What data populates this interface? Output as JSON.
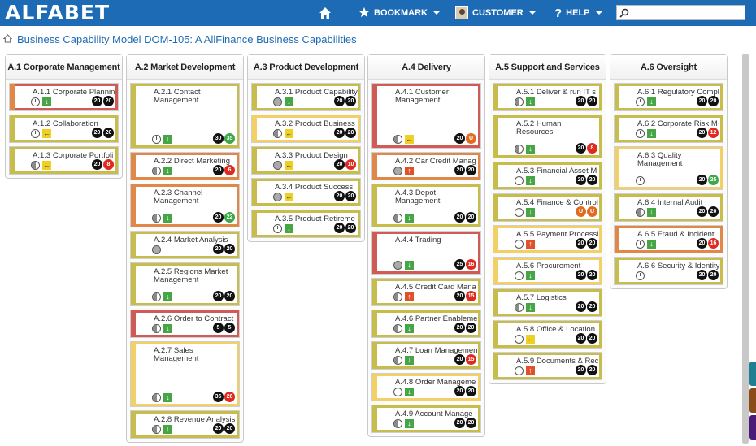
{
  "app": {
    "logo": "ALFABET"
  },
  "nav": {
    "bookmark": "BOOKMARK",
    "customer": "CUSTOMER",
    "help": "HELP",
    "search_value": ""
  },
  "page": {
    "title": "Business Capability Model DOM-105: A AllFinance Business Capabilities"
  },
  "colors": {
    "topbar": "#1e6bb5",
    "bar_red": "#d05a55",
    "bar_orange": "#e0874a",
    "bar_olive": "#c6bd4c",
    "bar_yellow": "#f2d066",
    "arrow_down": "#46a646",
    "arrow_up": "#e0512a",
    "arrow_left": "#f0cf24"
  },
  "columns": [
    {
      "title": "A.1 Corporate Management",
      "cards": [
        {
          "label": "A.1.1  Corporate Plannin",
          "h": 1,
          "bar": "orange",
          "frame": "red",
          "status": "clock",
          "arrow": "down",
          "badges": [
            [
              "20",
              "black"
            ],
            [
              "20",
              "black"
            ]
          ]
        },
        {
          "label": "A.1.2  Collaboration",
          "h": 1,
          "bar": "olive",
          "frame": "olive",
          "status": "clock",
          "arrow": "left",
          "badges": [
            [
              "20",
              "black"
            ],
            [
              "20",
              "black"
            ]
          ]
        },
        {
          "label": "A.1.3  Corporate Portfoli",
          "h": 1,
          "bar": "olive",
          "frame": "olive",
          "status": "half",
          "arrow": "left",
          "badges": [
            [
              "20",
              "black"
            ],
            [
              "8",
              "red"
            ]
          ]
        }
      ]
    },
    {
      "title": "A.2 Market Development",
      "cards": [
        {
          "label": "A.2.1 Contact Management",
          "h": 3,
          "bar": "olive",
          "frame": "olive",
          "status": "clock",
          "arrow": "down",
          "badges": [
            [
              "30",
              "black"
            ],
            [
              "35",
              "green"
            ]
          ]
        },
        {
          "label": "A.2.2 Direct Marketing",
          "h": 1,
          "bar": "orange",
          "frame": "orange",
          "status": "half",
          "arrow": "down",
          "badges": [
            [
              "20",
              "black"
            ],
            [
              "6",
              "red"
            ]
          ]
        },
        {
          "label": "A.2.3 Channel Management",
          "h": 2,
          "bar": "orange",
          "frame": "orange",
          "status": "half",
          "arrow": "down",
          "badges": [
            [
              "20",
              "black"
            ],
            [
              "22",
              "green"
            ]
          ]
        },
        {
          "label": "A.2.4 Market Analysis",
          "h": 1,
          "bar": "olive",
          "frame": "olive",
          "status": "full",
          "arrow": "",
          "badges": [
            [
              "20",
              "black"
            ],
            [
              "20",
              "black"
            ]
          ]
        },
        {
          "label": "A.2.5 Regions Market Management",
          "h": 2,
          "bar": "olive",
          "frame": "olive",
          "status": "half",
          "arrow": "down",
          "badges": [
            [
              "20",
              "black"
            ],
            [
              "20",
              "black"
            ]
          ]
        },
        {
          "label": "A.2.6 Order to Contract",
          "h": 1,
          "bar": "red",
          "frame": "red",
          "status": "half",
          "arrow": "down",
          "badges": [
            [
              "5",
              "black"
            ],
            [
              "5",
              "black"
            ]
          ]
        },
        {
          "label": "A.2.7 Sales Management",
          "h": 3,
          "bar": "yellow",
          "frame": "yellow",
          "status": "half",
          "arrow": "down",
          "badges": [
            [
              "35",
              "black"
            ],
            [
              "26",
              "red"
            ]
          ]
        },
        {
          "label": "A.2.8 Revenue Analysis",
          "h": 1,
          "bar": "olive",
          "frame": "olive",
          "status": "half",
          "arrow": "down",
          "badges": [
            [
              "20",
              "black"
            ],
            [
              "20",
              "black"
            ]
          ]
        }
      ]
    },
    {
      "title": "A.3 Product Development",
      "cards": [
        {
          "label": "A.3.1 Product Capability",
          "h": 1,
          "bar": "olive",
          "frame": "olive",
          "status": "full",
          "arrow": "down",
          "badges": [
            [
              "20",
              "black"
            ],
            [
              "20",
              "black"
            ]
          ]
        },
        {
          "label": "A.3.2 Product Business",
          "h": 1,
          "bar": "yellow",
          "frame": "yellow",
          "status": "half",
          "arrow": "left",
          "badges": [
            [
              "20",
              "black"
            ],
            [
              "20",
              "black"
            ]
          ]
        },
        {
          "label": "A.3.3 Product Design",
          "h": 1,
          "bar": "olive",
          "frame": "olive",
          "status": "full",
          "arrow": "left",
          "badges": [
            [
              "20",
              "black"
            ],
            [
              "10",
              "red"
            ]
          ]
        },
        {
          "label": "A.3.4 Product Success",
          "h": 1,
          "bar": "olive",
          "frame": "olive",
          "status": "full",
          "arrow": "left",
          "badges": [
            [
              "20",
              "black"
            ],
            [
              "20",
              "black"
            ]
          ]
        },
        {
          "label": "A.3.5  Product Retireme",
          "h": 1,
          "bar": "olive",
          "frame": "olive",
          "status": "clock",
          "arrow": "down",
          "badges": [
            [
              "20",
              "black"
            ],
            [
              "20",
              "black"
            ]
          ]
        }
      ]
    },
    {
      "title": "A.4 Delivery",
      "cards": [
        {
          "label": "A.4.1 Customer Management",
          "h": 3,
          "bar": "red",
          "frame": "red",
          "status": "half",
          "arrow": "left",
          "badges": [
            [
              "20",
              "black"
            ],
            [
              "U",
              "orange"
            ]
          ]
        },
        {
          "label": "A.4.2 Car Credit Manag",
          "h": 1,
          "bar": "orange",
          "frame": "orange",
          "status": "full",
          "arrow": "up",
          "badges": [
            [
              "20",
              "black"
            ],
            [
              "20",
              "black"
            ]
          ]
        },
        {
          "label": "A.4.3 Depot Management",
          "h": 2,
          "bar": "olive",
          "frame": "olive",
          "status": "half",
          "arrow": "down",
          "badges": [
            [
              "20",
              "black"
            ],
            [
              "20",
              "black"
            ]
          ]
        },
        {
          "label": "A.4.4 Trading",
          "h": 2,
          "bar": "red",
          "frame": "red",
          "status": "full",
          "arrow": "down",
          "badges": [
            [
              "25",
              "black"
            ],
            [
              "16",
              "red"
            ]
          ]
        },
        {
          "label": "A.4.5 Credit Card Mana",
          "h": 1,
          "bar": "olive",
          "frame": "olive",
          "status": "half",
          "arrow": "up",
          "badges": [
            [
              "20",
              "black"
            ],
            [
              "15",
              "red"
            ]
          ]
        },
        {
          "label": "A.4.6  Partner Enableme",
          "h": 1,
          "bar": "olive",
          "frame": "olive",
          "status": "half",
          "arrow": "down",
          "badges": [
            [
              "20",
              "black"
            ],
            [
              "20",
              "black"
            ]
          ]
        },
        {
          "label": "A.4.7  Loan Managemen",
          "h": 1,
          "bar": "olive",
          "frame": "olive",
          "status": "half",
          "arrow": "down",
          "badges": [
            [
              "20",
              "black"
            ],
            [
              "15",
              "red"
            ]
          ]
        },
        {
          "label": "A.4.8 Order Manageme",
          "h": 1,
          "bar": "yellow",
          "frame": "yellow",
          "status": "clock",
          "arrow": "down",
          "badges": [
            [
              "20",
              "black"
            ],
            [
              "20",
              "black"
            ]
          ]
        },
        {
          "label": "A.4.9  Account Manage",
          "h": 1,
          "bar": "olive",
          "frame": "olive",
          "status": "half",
          "arrow": "down",
          "badges": [
            [
              "20",
              "black"
            ],
            [
              "20",
              "black"
            ]
          ]
        }
      ]
    },
    {
      "title": "A.5 Support and Services",
      "cards": [
        {
          "label": "A.5.1 Deliver & run IT s",
          "h": 1,
          "bar": "olive",
          "frame": "olive",
          "status": "half",
          "arrow": "down",
          "badges": [
            [
              "20",
              "black"
            ],
            [
              "20",
              "black"
            ]
          ]
        },
        {
          "label": "A.5.2 Human Resources",
          "h": 2,
          "bar": "olive",
          "frame": "olive",
          "status": "half",
          "arrow": "down",
          "badges": [
            [
              "20",
              "black"
            ],
            [
              "8",
              "red"
            ]
          ]
        },
        {
          "label": "A.5.3 Financial Asset M",
          "h": 1,
          "bar": "olive",
          "frame": "olive",
          "status": "clock",
          "arrow": "down",
          "badges": [
            [
              "20",
              "black"
            ],
            [
              "20",
              "black"
            ]
          ]
        },
        {
          "label": "A.5.4  Finance & Control",
          "h": 1,
          "bar": "olive",
          "frame": "olive",
          "status": "clock",
          "arrow": "down",
          "badges": [
            [
              "U",
              "orange"
            ],
            [
              "U",
              "orange"
            ]
          ]
        },
        {
          "label": "A.5.5  Payment Processi",
          "h": 1,
          "bar": "yellow",
          "frame": "yellow",
          "status": "clock",
          "arrow": "up",
          "badges": [
            [
              "20",
              "black"
            ],
            [
              "20",
              "black"
            ]
          ]
        },
        {
          "label": "A.5.6 Procurement",
          "h": 1,
          "bar": "yellow",
          "frame": "yellow",
          "status": "clock",
          "arrow": "down",
          "badges": [
            [
              "20",
              "black"
            ],
            [
              "20",
              "black"
            ]
          ]
        },
        {
          "label": "A.5.7 Logistics",
          "h": 1,
          "bar": "olive",
          "frame": "olive",
          "status": "half",
          "arrow": "down",
          "badges": [
            [
              "20",
              "black"
            ],
            [
              "20",
              "black"
            ]
          ]
        },
        {
          "label": "A.5.8 Office & Location",
          "h": 1,
          "bar": "olive",
          "frame": "olive",
          "status": "clock",
          "arrow": "left",
          "badges": [
            [
              "20",
              "black"
            ],
            [
              "20",
              "black"
            ]
          ]
        },
        {
          "label": "A.5.9  Documents  & Rec",
          "h": 1,
          "bar": "olive",
          "frame": "olive",
          "status": "clock",
          "arrow": "up",
          "badges": [
            [
              "20",
              "black"
            ],
            [
              "20",
              "black"
            ]
          ]
        }
      ]
    },
    {
      "title": "A.6 Oversight",
      "cards": [
        {
          "label": "A.6.1  Regulatory Compl",
          "h": 1,
          "bar": "olive",
          "frame": "olive",
          "status": "clock",
          "arrow": "down",
          "badges": [
            [
              "20",
              "black"
            ],
            [
              "20",
              "black"
            ]
          ]
        },
        {
          "label": "A.6.2 Corporate Risk M",
          "h": 1,
          "bar": "olive",
          "frame": "olive",
          "status": "clock",
          "arrow": "down",
          "badges": [
            [
              "20",
              "black"
            ],
            [
              "12",
              "red"
            ]
          ]
        },
        {
          "label": "A.6.3 Quality Management",
          "h": 2,
          "bar": "yellow",
          "frame": "yellow",
          "status": "clock",
          "arrow": "",
          "badges": [
            [
              "20",
              "black"
            ],
            [
              "25",
              "green"
            ]
          ]
        },
        {
          "label": "A.6.4 Internal Audit",
          "h": 1,
          "bar": "olive",
          "frame": "olive",
          "status": "half",
          "arrow": "down",
          "badges": [
            [
              "20",
              "black"
            ],
            [
              "20",
              "black"
            ]
          ]
        },
        {
          "label": "A.6.5 Fraud & Incident",
          "h": 1,
          "bar": "orange",
          "frame": "orange",
          "status": "clock",
          "arrow": "down",
          "badges": [
            [
              "20",
              "black"
            ],
            [
              "16",
              "red"
            ]
          ]
        },
        {
          "label": "A.6.6 Security & Identity",
          "h": 1,
          "bar": "olive",
          "frame": "olive",
          "status": "clock",
          "arrow": "",
          "badges": [
            [
              "20",
              "black"
            ],
            [
              "20",
              "black"
            ]
          ]
        }
      ]
    }
  ]
}
